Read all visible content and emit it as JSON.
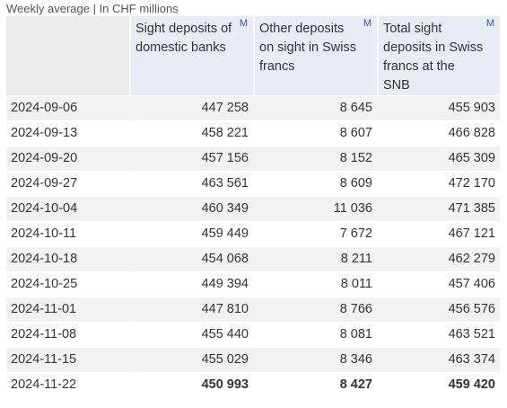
{
  "caption": "Weekly average | In CHF millions",
  "columns": [
    {
      "label": "Sight deposits of domestic banks",
      "flag": "M"
    },
    {
      "label": "Other deposits on sight in Swiss francs",
      "flag": "M"
    },
    {
      "label": "Total sight deposits in Swiss francs at the SNB",
      "flag": "M"
    }
  ],
  "rows": [
    {
      "date": "2024-09-06",
      "values": [
        "447 258",
        "8 645",
        "455 903"
      ]
    },
    {
      "date": "2024-09-13",
      "values": [
        "458 221",
        "8 607",
        "466 828"
      ]
    },
    {
      "date": "2024-09-20",
      "values": [
        "457 156",
        "8 152",
        "465 309"
      ]
    },
    {
      "date": "2024-09-27",
      "values": [
        "463 561",
        "8 609",
        "472 170"
      ]
    },
    {
      "date": "2024-10-04",
      "values": [
        "460 349",
        "11 036",
        "471 385"
      ]
    },
    {
      "date": "2024-10-11",
      "values": [
        "459 449",
        "7 672",
        "467 121"
      ]
    },
    {
      "date": "2024-10-18",
      "values": [
        "454 068",
        "8 211",
        "462 279"
      ]
    },
    {
      "date": "2024-10-25",
      "values": [
        "449 394",
        "8 011",
        "457 406"
      ]
    },
    {
      "date": "2024-11-01",
      "values": [
        "447 810",
        "8 766",
        "456 576"
      ]
    },
    {
      "date": "2024-11-08",
      "values": [
        "455 440",
        "8 081",
        "463 521"
      ]
    },
    {
      "date": "2024-11-15",
      "values": [
        "455 029",
        "8 346",
        "463 374"
      ]
    },
    {
      "date": "2024-11-22",
      "values": [
        "450 993",
        "8 427",
        "459 420"
      ]
    }
  ]
}
